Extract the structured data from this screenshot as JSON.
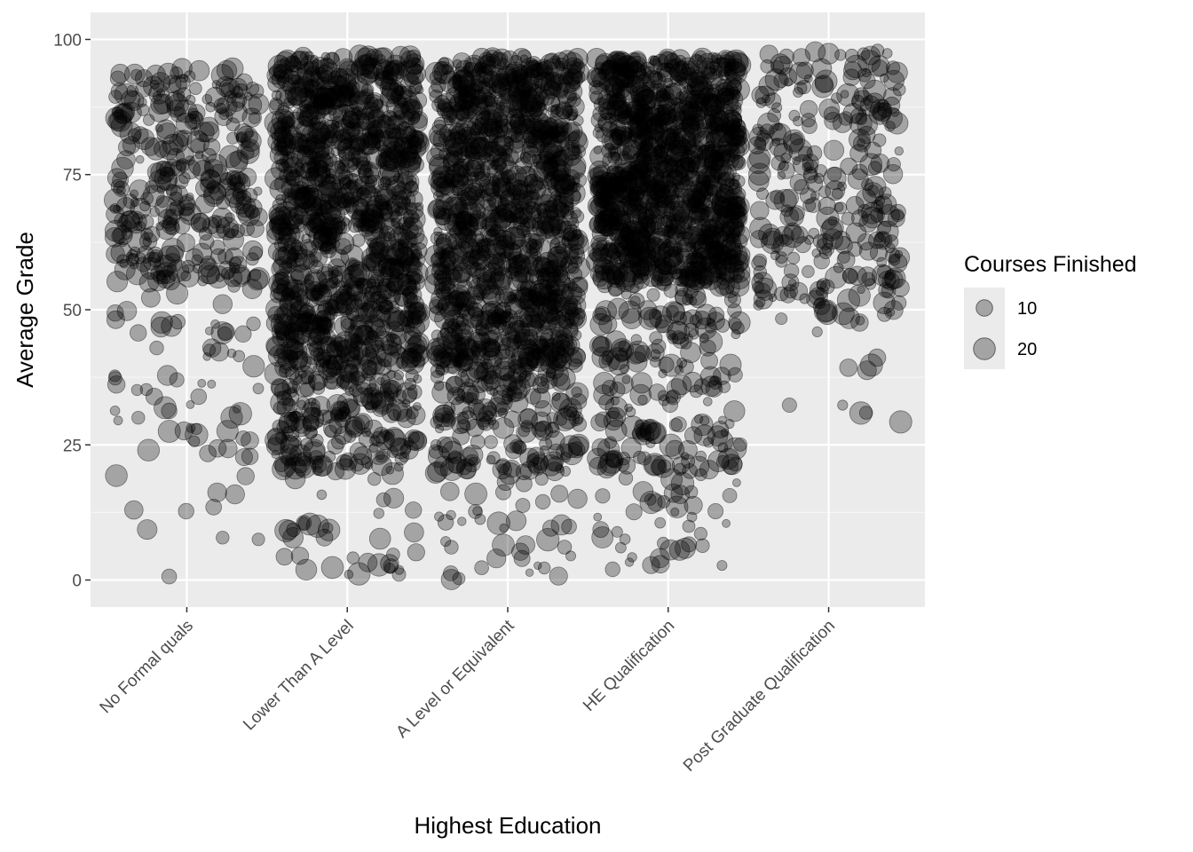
{
  "chart_data": {
    "type": "scatter",
    "title": "",
    "xlabel": "Highest Education",
    "ylabel": "Average Grade",
    "categories": [
      "No Formal quals",
      "Lower Than A Level",
      "A Level or Equivalent",
      "HE Qualification",
      "Post Graduate Qualification"
    ],
    "ylim": [
      -5,
      105
    ],
    "yticks": [
      0,
      25,
      50,
      75,
      100
    ],
    "grid": true,
    "jitter": true,
    "point_color": "#000000",
    "point_alpha": 0.3,
    "panel_background": "#ebebeb",
    "legend": {
      "title": "Courses Finished",
      "entries": [
        {
          "label": "10",
          "size": 10
        },
        {
          "label": "20",
          "size": 20
        }
      ],
      "position": "right"
    },
    "groups": [
      {
        "category": "No Formal quals",
        "n": 420,
        "dense_range": [
          55,
          95
        ],
        "spread_range": [
          0,
          100
        ],
        "size_range": [
          1,
          22
        ]
      },
      {
        "category": "Lower Than A Level",
        "n": 9000,
        "dense_range": [
          40,
          97
        ],
        "spread_range": [
          0,
          100
        ],
        "size_range": [
          1,
          22
        ]
      },
      {
        "category": "A Level or Equivalent",
        "n": 9500,
        "dense_range": [
          40,
          97
        ],
        "spread_range": [
          0,
          100
        ],
        "size_range": [
          1,
          22
        ]
      },
      {
        "category": "HE Qualification",
        "n": 5000,
        "dense_range": [
          55,
          97
        ],
        "spread_range": [
          0,
          100
        ],
        "size_range": [
          1,
          22
        ]
      },
      {
        "category": "Post Graduate Qualification",
        "n": 320,
        "dense_range": [
          55,
          98
        ],
        "spread_range": [
          28,
          100
        ],
        "size_range": [
          1,
          22
        ]
      }
    ]
  }
}
